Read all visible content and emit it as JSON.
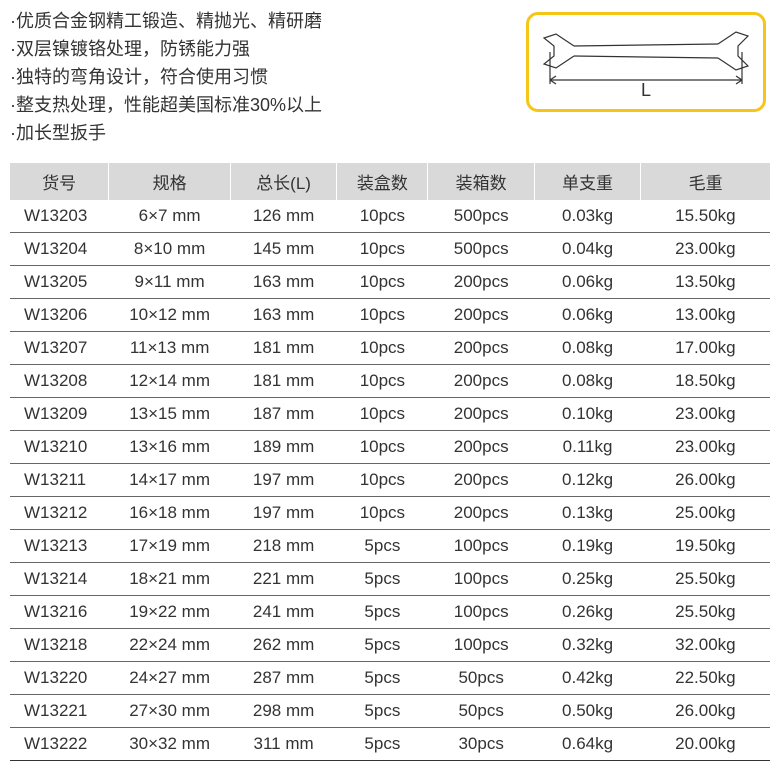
{
  "features": [
    "·优质合金钢精工锻造、精抛光、精研磨",
    "·双层镍镀铬处理，防锈能力强",
    "·独特的弯角设计，符合使用习惯",
    "·整支热处理，性能超美国标准30%以上",
    "·加长型扳手"
  ],
  "diagram": {
    "length_label": "L",
    "border_color": "#f5c518",
    "stroke_color": "#333333"
  },
  "table": {
    "headers": [
      "货号",
      "规格",
      "总长(L)",
      "装盒数",
      "装箱数",
      "单支重",
      "毛重"
    ],
    "header_bg": "#d9d9d9",
    "row_border_color": "#666666",
    "text_color": "#333333",
    "fontsize": 17,
    "rows": [
      [
        "W13203",
        "6×7 mm",
        "126 mm",
        "10pcs",
        "500pcs",
        "0.03kg",
        "15.50kg"
      ],
      [
        "W13204",
        "8×10 mm",
        "145 mm",
        "10pcs",
        "500pcs",
        "0.04kg",
        "23.00kg"
      ],
      [
        "W13205",
        "9×11 mm",
        "163 mm",
        "10pcs",
        "200pcs",
        "0.06kg",
        "13.50kg"
      ],
      [
        "W13206",
        "10×12 mm",
        "163 mm",
        "10pcs",
        "200pcs",
        "0.06kg",
        "13.00kg"
      ],
      [
        "W13207",
        "11×13 mm",
        "181 mm",
        "10pcs",
        "200pcs",
        "0.08kg",
        "17.00kg"
      ],
      [
        "W13208",
        "12×14 mm",
        "181 mm",
        "10pcs",
        "200pcs",
        "0.08kg",
        "18.50kg"
      ],
      [
        "W13209",
        "13×15 mm",
        "187 mm",
        "10pcs",
        "200pcs",
        "0.10kg",
        "23.00kg"
      ],
      [
        "W13210",
        "13×16 mm",
        "189 mm",
        "10pcs",
        "200pcs",
        "0.11kg",
        "23.00kg"
      ],
      [
        "W13211",
        "14×17 mm",
        "197 mm",
        "10pcs",
        "200pcs",
        "0.12kg",
        "26.00kg"
      ],
      [
        "W13212",
        "16×18 mm",
        "197 mm",
        "10pcs",
        "200pcs",
        "0.13kg",
        "25.00kg"
      ],
      [
        "W13213",
        "17×19 mm",
        "218 mm",
        "5pcs",
        "100pcs",
        "0.19kg",
        "19.50kg"
      ],
      [
        "W13214",
        "18×21 mm",
        "221 mm",
        "5pcs",
        "100pcs",
        "0.25kg",
        "25.50kg"
      ],
      [
        "W13216",
        "19×22 mm",
        "241 mm",
        "5pcs",
        "100pcs",
        "0.26kg",
        "25.50kg"
      ],
      [
        "W13218",
        "22×24 mm",
        "262 mm",
        "5pcs",
        "100pcs",
        "0.32kg",
        "32.00kg"
      ],
      [
        "W13220",
        "24×27 mm",
        "287 mm",
        "5pcs",
        "50pcs",
        "0.42kg",
        "22.50kg"
      ],
      [
        "W13221",
        "27×30 mm",
        "298 mm",
        "5pcs",
        "50pcs",
        "0.50kg",
        "26.00kg"
      ],
      [
        "W13222",
        "30×32 mm",
        "311 mm",
        "5pcs",
        "30pcs",
        "0.64kg",
        "20.00kg"
      ]
    ]
  }
}
